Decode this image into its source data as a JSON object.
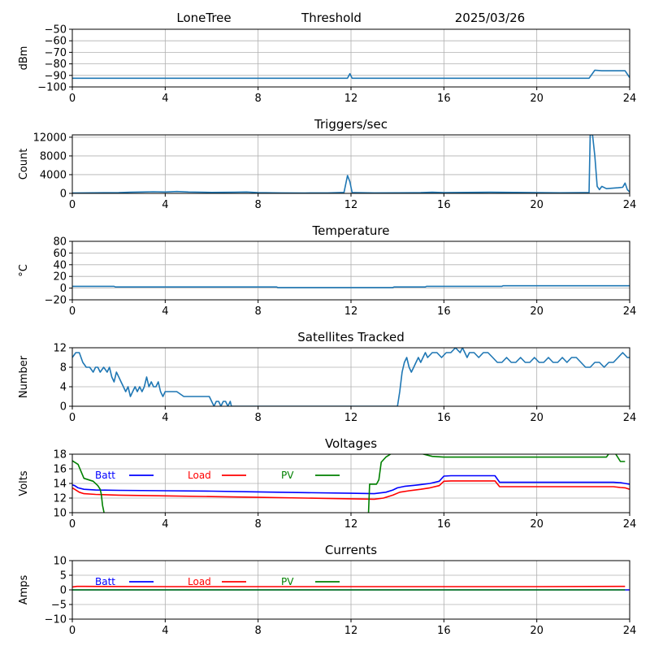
{
  "header": {
    "station": "LoneTree",
    "mode": "Threshold",
    "date": "2025/03/26"
  },
  "colors": {
    "series": "#1f77b4",
    "batt": "#0000ff",
    "load": "#ff0000",
    "pv": "#008000",
    "grid": "#b0b0b0"
  },
  "chart_data": [
    {
      "type": "line",
      "title": "",
      "xlabel": "",
      "ylabel": "dBm",
      "xlim": [
        0,
        24
      ],
      "ylim": [
        -100,
        -50
      ],
      "xticks": [
        0,
        4,
        8,
        12,
        16,
        20,
        24
      ],
      "yticks": [
        -100,
        -90,
        -80,
        -70,
        -60,
        -50
      ],
      "ytick_labels": [
        "−100",
        "−90",
        "−80",
        "−70",
        "−60",
        "−50"
      ],
      "grid": true,
      "series": [
        {
          "color": "#1f77b4",
          "x": [
            0,
            11.85,
            11.95,
            12.05,
            12.15,
            22.25,
            22.5,
            22.8,
            23.5,
            23.8,
            24
          ],
          "y": [
            -92.5,
            -92.5,
            -88.5,
            -92.5,
            -92.5,
            -92.5,
            -85.5,
            -86,
            -86,
            -86,
            -92
          ]
        }
      ]
    },
    {
      "type": "line",
      "title": "Triggers/sec",
      "xlabel": "",
      "ylabel": "Count",
      "xlim": [
        0,
        24
      ],
      "ylim": [
        0,
        12500
      ],
      "xticks": [
        0,
        4,
        8,
        12,
        16,
        20,
        24
      ],
      "yticks": [
        0,
        4000,
        8000,
        12000
      ],
      "ytick_labels": [
        "0",
        "4000",
        "8000",
        "12000"
      ],
      "grid": true,
      "series": [
        {
          "color": "#1f77b4",
          "x": [
            0,
            2,
            2.5,
            3,
            3.5,
            4,
            4.5,
            5,
            6,
            7,
            7.5,
            8,
            9,
            10,
            11,
            11.7,
            11.85,
            11.95,
            12.05,
            12.2,
            13,
            14,
            15,
            15.5,
            16,
            17,
            18,
            19,
            20,
            21,
            22,
            22.25,
            22.3,
            22.4,
            22.5,
            22.6,
            22.7,
            22.8,
            23,
            23.5,
            23.7,
            23.8,
            23.9,
            24
          ],
          "y": [
            80,
            150,
            250,
            300,
            350,
            300,
            400,
            300,
            200,
            250,
            300,
            150,
            100,
            80,
            100,
            200,
            3800,
            2500,
            150,
            150,
            100,
            120,
            150,
            250,
            150,
            200,
            250,
            200,
            150,
            120,
            150,
            150,
            12500,
            12500,
            8000,
            1500,
            800,
            1500,
            1000,
            1200,
            1300,
            2200,
            800,
            300
          ]
        }
      ]
    },
    {
      "type": "line",
      "title": "Temperature",
      "xlabel": "",
      "ylabel": "°C",
      "xlim": [
        0,
        24
      ],
      "ylim": [
        -20,
        80
      ],
      "xticks": [
        0,
        4,
        8,
        12,
        16,
        20,
        24
      ],
      "yticks": [
        -20,
        0,
        20,
        40,
        60,
        80
      ],
      "ytick_labels": [
        "−20",
        "0",
        "20",
        "40",
        "60",
        "80"
      ],
      "grid": true,
      "series": [
        {
          "color": "#1f77b4",
          "x": [
            0,
            1.8,
            1.85,
            8.8,
            8.85,
            13.8,
            13.85,
            15.2,
            15.25,
            18.5,
            18.55,
            24
          ],
          "y": [
            3,
            3,
            2,
            2,
            1,
            1,
            2,
            2,
            3,
            3,
            4,
            4
          ]
        }
      ]
    },
    {
      "type": "line",
      "title": "Satellites Tracked",
      "xlabel": "",
      "ylabel": "Number",
      "xlim": [
        0,
        24
      ],
      "ylim": [
        0,
        12
      ],
      "xticks": [
        0,
        4,
        8,
        12,
        16,
        20,
        24
      ],
      "yticks": [
        0,
        4,
        8,
        12
      ],
      "ytick_labels": [
        "0",
        "4",
        "8",
        "12"
      ],
      "grid": true,
      "series": [
        {
          "color": "#1f77b4",
          "x": [
            0,
            0.15,
            0.3,
            0.45,
            0.6,
            0.75,
            0.9,
            1.0,
            1.1,
            1.2,
            1.35,
            1.5,
            1.6,
            1.7,
            1.8,
            1.9,
            2.0,
            2.1,
            2.2,
            2.3,
            2.4,
            2.5,
            2.6,
            2.7,
            2.8,
            2.9,
            3.0,
            3.1,
            3.2,
            3.3,
            3.4,
            3.5,
            3.6,
            3.7,
            3.8,
            3.9,
            4.0,
            4.1,
            4.2,
            4.3,
            4.5,
            4.8,
            5.0,
            5.5,
            5.9,
            6.0,
            6.1,
            6.2,
            6.3,
            6.4,
            6.5,
            6.6,
            6.7,
            6.8,
            6.85,
            14.0,
            14.1,
            14.2,
            14.3,
            14.4,
            14.5,
            14.6,
            14.7,
            14.8,
            14.9,
            15.0,
            15.1,
            15.2,
            15.3,
            15.5,
            15.7,
            15.9,
            16.1,
            16.3,
            16.5,
            16.7,
            16.8,
            16.9,
            17.0,
            17.1,
            17.3,
            17.5,
            17.7,
            17.9,
            18.1,
            18.3,
            18.5,
            18.7,
            18.9,
            19.1,
            19.3,
            19.5,
            19.7,
            19.9,
            20.1,
            20.3,
            20.5,
            20.7,
            20.9,
            21.1,
            21.3,
            21.5,
            21.7,
            21.9,
            22.1,
            22.3,
            22.5,
            22.7,
            22.9,
            23.1,
            23.3,
            23.5,
            23.7,
            23.9,
            24
          ],
          "y": [
            10,
            11,
            11,
            9,
            8,
            8,
            7,
            8,
            8,
            7,
            8,
            7,
            8,
            6,
            5,
            7,
            6,
            5,
            4,
            3,
            4,
            2,
            3,
            4,
            3,
            4,
            3,
            4,
            6,
            4,
            5,
            4,
            4,
            5,
            3,
            2,
            3,
            3,
            3,
            3,
            3,
            2,
            2,
            2,
            2,
            1,
            0,
            1,
            1,
            0,
            1,
            1,
            0,
            1,
            0,
            0,
            3,
            7,
            9,
            10,
            8,
            7,
            8,
            9,
            10,
            9,
            10,
            11,
            10,
            11,
            11,
            10,
            11,
            11,
            12,
            11,
            12,
            11,
            10,
            11,
            11,
            10,
            11,
            11,
            10,
            9,
            9,
            10,
            9,
            9,
            10,
            9,
            9,
            10,
            9,
            9,
            10,
            9,
            9,
            10,
            9,
            10,
            10,
            9,
            8,
            8,
            9,
            9,
            8,
            9,
            9,
            10,
            11,
            10,
            10
          ]
        }
      ]
    },
    {
      "type": "line",
      "title": "Voltages",
      "xlabel": "",
      "ylabel": "Volts",
      "xlim": [
        0,
        24
      ],
      "ylim": [
        10,
        18
      ],
      "xticks": [
        0,
        4,
        8,
        12,
        16,
        20,
        24
      ],
      "yticks": [
        10,
        12,
        14,
        16,
        18
      ],
      "ytick_labels": [
        "10",
        "12",
        "14",
        "16",
        "18"
      ],
      "grid": true,
      "legend": "in-plot, top-left row",
      "series": [
        {
          "name": "Batt",
          "color": "#0000ff",
          "x": [
            0,
            0.1,
            0.25,
            0.5,
            1.0,
            2.0,
            4.0,
            6.0,
            8.0,
            10.0,
            12.0,
            13.0,
            13.5,
            13.8,
            14.0,
            14.3,
            14.6,
            15.0,
            15.4,
            15.8,
            16.0,
            16.3,
            17.0,
            18.0,
            18.2,
            18.4,
            20.0,
            22.0,
            23.0,
            23.3,
            23.6,
            23.8,
            24
          ],
          "y": [
            13.8,
            13.7,
            13.4,
            13.2,
            13.1,
            13.05,
            13.0,
            12.95,
            12.85,
            12.75,
            12.65,
            12.6,
            12.8,
            13.1,
            13.4,
            13.6,
            13.7,
            13.85,
            14.0,
            14.3,
            15.0,
            15.05,
            15.05,
            15.05,
            15.05,
            14.15,
            14.15,
            14.15,
            14.15,
            14.15,
            14.1,
            14.0,
            13.9
          ]
        },
        {
          "name": "Load",
          "color": "#ff0000",
          "x": [
            0,
            0.1,
            0.3,
            0.5,
            1.0,
            2.0,
            4.0,
            6.0,
            8.0,
            10.0,
            12.0,
            13.0,
            13.4,
            13.8,
            14.1,
            14.5,
            15.0,
            15.4,
            15.8,
            16.0,
            16.3,
            17.0,
            18.0,
            18.2,
            18.4,
            20.0,
            22.0,
            23.0,
            23.3,
            23.6,
            23.8,
            24
          ],
          "y": [
            13.4,
            13.2,
            12.8,
            12.6,
            12.5,
            12.4,
            12.3,
            12.2,
            12.1,
            12.0,
            11.9,
            11.85,
            12.0,
            12.4,
            12.8,
            13.0,
            13.2,
            13.4,
            13.7,
            14.3,
            14.35,
            14.35,
            14.35,
            14.35,
            13.55,
            13.55,
            13.55,
            13.55,
            13.55,
            13.45,
            13.4,
            13.2
          ]
        },
        {
          "name": "PV",
          "color": "#008000",
          "x": [
            0,
            0.25,
            0.5,
            0.9,
            1.1,
            1.2,
            1.25,
            1.3,
            1.4,
            1.5,
            12.7,
            12.75,
            12.8,
            12.95,
            13.1,
            13.2,
            13.3,
            13.5,
            13.7,
            14.0,
            15.0,
            15.5,
            16.0,
            23.0,
            23.2,
            23.4,
            23.6,
            23.8
          ],
          "y": [
            17.1,
            16.6,
            14.7,
            14.3,
            13.7,
            13.2,
            12.5,
            11.0,
            9.5,
            7.0,
            8.0,
            9.5,
            13.9,
            13.9,
            13.9,
            14.5,
            16.9,
            17.6,
            18.0,
            18.7,
            18.1,
            17.7,
            17.6,
            17.6,
            18.5,
            18.0,
            17.0,
            17.0
          ]
        }
      ]
    },
    {
      "type": "line",
      "title": "Currents",
      "xlabel": "",
      "ylabel": "Amps",
      "xlim": [
        0,
        24
      ],
      "ylim": [
        -10,
        10
      ],
      "xticks": [
        0,
        4,
        8,
        12,
        16,
        20,
        24
      ],
      "yticks": [
        -10,
        -5,
        0,
        5,
        10
      ],
      "ytick_labels": [
        "−10",
        "−5",
        "0",
        "5",
        "10"
      ],
      "grid": true,
      "legend": "in-plot, top-left row",
      "series": [
        {
          "name": "Batt",
          "color": "#0000ff",
          "x": [
            0,
            24
          ],
          "y": [
            0.0,
            0.0
          ]
        },
        {
          "name": "Load",
          "color": "#ff0000",
          "x": [
            0,
            0.2,
            0.5,
            4,
            8,
            12,
            16,
            20,
            23.8
          ],
          "y": [
            1.0,
            1.2,
            1.2,
            1.1,
            1.1,
            1.1,
            1.1,
            1.1,
            1.2
          ]
        },
        {
          "name": "PV",
          "color": "#008000",
          "x": [
            0,
            23.8
          ],
          "y": [
            0.0,
            0.0
          ]
        }
      ]
    }
  ]
}
